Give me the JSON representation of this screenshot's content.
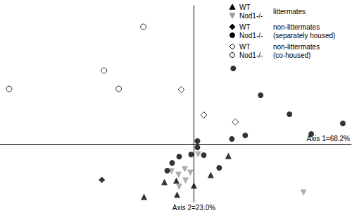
{
  "chart_data": {
    "type": "scatter",
    "xlabel": "Axis 1=68.2%",
    "ylabel": "Axis 2=23.0%",
    "xlim": [
      -2.76,
      2.24
    ],
    "ylim": [
      -0.82,
      1.96
    ],
    "tick_labels": false,
    "grid": false,
    "legend": "top-right",
    "series": [
      {
        "name": "WT",
        "group": "littermates",
        "color": "#000000",
        "marker": "triangle",
        "x": [
          -0.71,
          -0.42,
          -0.25,
          -0.24,
          0.0,
          0.24,
          0.49
        ],
        "y": [
          -0.75,
          -0.54,
          -0.52,
          -0.72,
          -0.59,
          -0.44,
          -0.17
        ]
      },
      {
        "name": "Nod1-/-",
        "group": "littermates",
        "color": "#999999",
        "marker": "triangle-down",
        "x": [
          0.06,
          -0.32,
          -0.22,
          -0.13,
          -0.05,
          -0.12,
          -0.21,
          1.56
        ],
        "y": [
          -0.15,
          -0.39,
          -0.44,
          -0.36,
          -0.41,
          -0.52,
          -0.61,
          -0.69
        ]
      },
      {
        "name": "WT",
        "group": "non-littermates\n(separately housed)",
        "color": "#000000",
        "marker": "diamond",
        "x": [
          -1.31
        ],
        "y": [
          -0.51
        ]
      },
      {
        "name": "Nod1-/-",
        "group": "non-littermates\n(separately housed)",
        "color": "#000000",
        "marker": "circle",
        "x": [
          0.56,
          0.95,
          1.36,
          1.67,
          2.12,
          0.73,
          0.54,
          0.05,
          0.05,
          -0.21,
          -0.04,
          0.14,
          -0.38,
          0.36,
          -0.31
        ],
        "y": [
          1.07,
          0.69,
          0.42,
          0.14,
          0.29,
          0.12,
          0.07,
          0.04,
          -0.05,
          -0.18,
          -0.15,
          -0.16,
          -0.38,
          -0.34,
          -0.27
        ]
      },
      {
        "name": "WT",
        "group": "non-littermates\n(co-housed)",
        "color": "#000000",
        "marker": "diamond-open",
        "x": [
          -0.18,
          0.14,
          0.59
        ],
        "y": [
          0.77,
          0.41,
          0.31
        ]
      },
      {
        "name": "Nod1-/-",
        "group": "non-littermates\n(co-housed)",
        "color": "#000000",
        "marker": "circle-open",
        "x": [
          -0.72,
          -1.28,
          -1.07,
          -2.63
        ],
        "y": [
          1.66,
          1.04,
          0.78,
          0.78
        ]
      }
    ]
  }
}
